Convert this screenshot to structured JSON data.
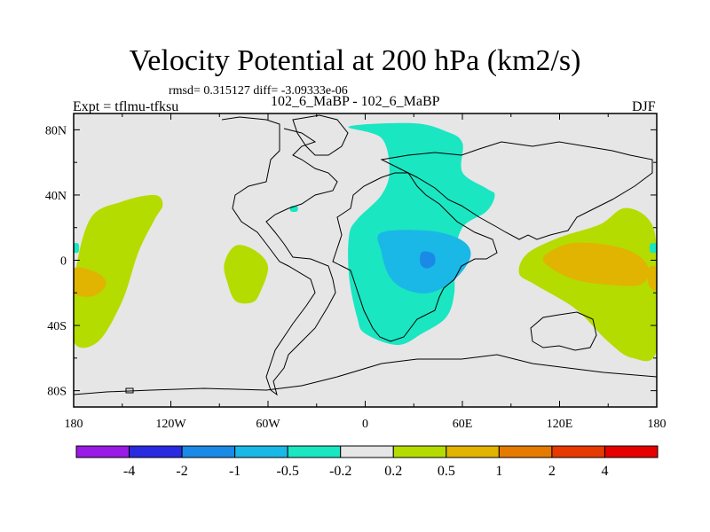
{
  "chart_data": {
    "type": "heatmap",
    "title": "Velocity Potential at 200 hPa (km2/s)",
    "stats": "rmsd= 0.315127 diff= -3.09333e-06",
    "expt": "Expt = tflmu-tfksu",
    "case": "102_6_MaBP - 102_6_MaBP",
    "season": "DJF",
    "x_range": [
      -180,
      180
    ],
    "y_range": [
      -90,
      90
    ],
    "x_ticks": [
      {
        "value": -180,
        "label": "180"
      },
      {
        "value": -120,
        "label": "120W"
      },
      {
        "value": -60,
        "label": "60W"
      },
      {
        "value": 0,
        "label": "0"
      },
      {
        "value": 60,
        "label": "60E"
      },
      {
        "value": 120,
        "label": "120E"
      },
      {
        "value": 180,
        "label": "180"
      }
    ],
    "y_ticks": [
      {
        "value": 80,
        "label": "80N"
      },
      {
        "value": 40,
        "label": "40N"
      },
      {
        "value": 0,
        "label": "0"
      },
      {
        "value": -40,
        "label": "40S"
      },
      {
        "value": -80,
        "label": "80S"
      }
    ],
    "colorbar": {
      "labels": [
        "-4",
        "-2",
        "-1",
        "-0.5",
        "-0.2",
        "0.2",
        "0.5",
        "1",
        "2",
        "4"
      ],
      "colors": [
        "#9a1ae6",
        "#2a2ae0",
        "#1a8ae6",
        "#1ab8e6",
        "#1ae6c2",
        "#e6e6e6",
        "#b4dc00",
        "#e0b400",
        "#e67a00",
        "#e63a00",
        "#e60000"
      ]
    },
    "regions": [
      {
        "name": "north-pacific-positive",
        "level": "0.2 to 0.5",
        "color": "#b4dc00",
        "points": [
          [
            -180,
            -15
          ],
          [
            -170,
            25
          ],
          [
            -150,
            36
          ],
          [
            -130,
            40
          ],
          [
            -125,
            34
          ],
          [
            -130,
            25
          ],
          [
            -140,
            5
          ],
          [
            -150,
            -25
          ],
          [
            -165,
            -50
          ],
          [
            -180,
            -50
          ]
        ]
      },
      {
        "name": "pacific-orange-west",
        "level": "0.5 to 1",
        "color": "#e0b400",
        "points": [
          [
            -180,
            -5
          ],
          [
            -165,
            -8
          ],
          [
            -160,
            -15
          ],
          [
            -168,
            -22
          ],
          [
            -180,
            -20
          ]
        ]
      },
      {
        "name": "north-atlantic-positive",
        "level": "0.2 to 0.5",
        "color": "#b4dc00",
        "points": [
          [
            -80,
            9
          ],
          [
            -68,
            6
          ],
          [
            -60,
            -4
          ],
          [
            -65,
            -20
          ],
          [
            -70,
            -26
          ],
          [
            -80,
            -25
          ],
          [
            -85,
            -14
          ],
          [
            -87,
            -2
          ]
        ]
      },
      {
        "name": "central-negative",
        "level": "-0.5 to -0.2",
        "color": "#1ae6c2",
        "points": [
          [
            -10,
            82
          ],
          [
            30,
            84
          ],
          [
            50,
            79
          ],
          [
            60,
            72
          ],
          [
            60,
            54
          ],
          [
            75,
            44
          ],
          [
            80,
            40
          ],
          [
            75,
            30
          ],
          [
            60,
            20
          ],
          [
            55,
            0
          ],
          [
            55,
            -20
          ],
          [
            50,
            -35
          ],
          [
            35,
            -45
          ],
          [
            20,
            -52
          ],
          [
            0,
            -45
          ],
          [
            -5,
            -35
          ],
          [
            -10,
            -10
          ],
          [
            -10,
            15
          ],
          [
            -5,
            25
          ],
          [
            10,
            40
          ],
          [
            15,
            55
          ],
          [
            10,
            75
          ]
        ]
      },
      {
        "name": "central-negative-inner",
        "level": "-1 to -0.5",
        "color": "#1ab8e6",
        "points": [
          [
            10,
            17
          ],
          [
            40,
            18
          ],
          [
            60,
            12
          ],
          [
            65,
            2
          ],
          [
            55,
            -12
          ],
          [
            40,
            -20
          ],
          [
            25,
            -18
          ],
          [
            15,
            -10
          ],
          [
            10,
            5
          ]
        ]
      },
      {
        "name": "central-negative-core",
        "level": "-2 to -1",
        "color": "#1a8ae6",
        "points": [
          [
            35,
            5
          ],
          [
            42,
            4
          ],
          [
            43,
            -2
          ],
          [
            38,
            -5
          ],
          [
            34,
            -2
          ]
        ]
      },
      {
        "name": "indian-ocean-negative-dot",
        "level": "-0.5 to -0.2",
        "color": "#1ae6c2",
        "points": [
          [
            -46,
            33
          ],
          [
            -42,
            33
          ],
          [
            -42,
            30
          ],
          [
            -46,
            30
          ]
        ]
      },
      {
        "name": "maritime-continent-positive",
        "level": "0.2 to 0.5",
        "color": "#b4dc00",
        "points": [
          [
            100,
            4
          ],
          [
            120,
            14
          ],
          [
            145,
            22
          ],
          [
            160,
            32
          ],
          [
            175,
            25
          ],
          [
            180,
            5
          ],
          [
            180,
            -55
          ],
          [
            165,
            -60
          ],
          [
            150,
            -50
          ],
          [
            130,
            -30
          ],
          [
            105,
            -15
          ],
          [
            95,
            -8
          ]
        ]
      },
      {
        "name": "maritime-continent-orange",
        "level": "0.5 to 1",
        "color": "#e0b400",
        "points": [
          [
            110,
            2
          ],
          [
            125,
            10
          ],
          [
            145,
            10
          ],
          [
            165,
            5
          ],
          [
            175,
            -5
          ],
          [
            170,
            -15
          ],
          [
            150,
            -15
          ],
          [
            130,
            -12
          ],
          [
            115,
            -5
          ]
        ]
      },
      {
        "name": "west-edge-negative",
        "level": "-0.5 to -0.2",
        "color": "#1ae6c2",
        "points": [
          [
            -180,
            10
          ],
          [
            -177,
            10
          ],
          [
            -177,
            5
          ],
          [
            -180,
            5
          ]
        ]
      },
      {
        "name": "east-edge-negative",
        "level": "-0.5 to -0.2",
        "color": "#1ae6c2",
        "points": [
          [
            176,
            10
          ],
          [
            180,
            10
          ],
          [
            180,
            5
          ],
          [
            176,
            5
          ]
        ]
      },
      {
        "name": "east-edge-orange",
        "level": "0.5 to 1",
        "color": "#e0b400",
        "points": [
          [
            175,
            -5
          ],
          [
            180,
            -5
          ],
          [
            180,
            -18
          ],
          [
            175,
            -15
          ]
        ]
      }
    ]
  }
}
